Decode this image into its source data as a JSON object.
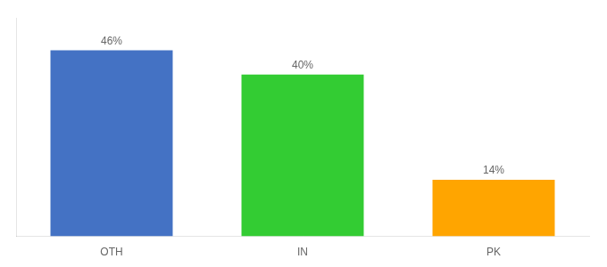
{
  "chart_data": {
    "type": "bar",
    "categories": [
      "OTH",
      "IN",
      "PK"
    ],
    "values": [
      46,
      40,
      14
    ],
    "colors": [
      "#4472C4",
      "#33CC33",
      "#FFA500"
    ],
    "value_labels": [
      "46%",
      "40%",
      "14%"
    ],
    "data_labels": true,
    "ylim": [
      0,
      54
    ],
    "grid": false,
    "tick_labels": "x"
  }
}
